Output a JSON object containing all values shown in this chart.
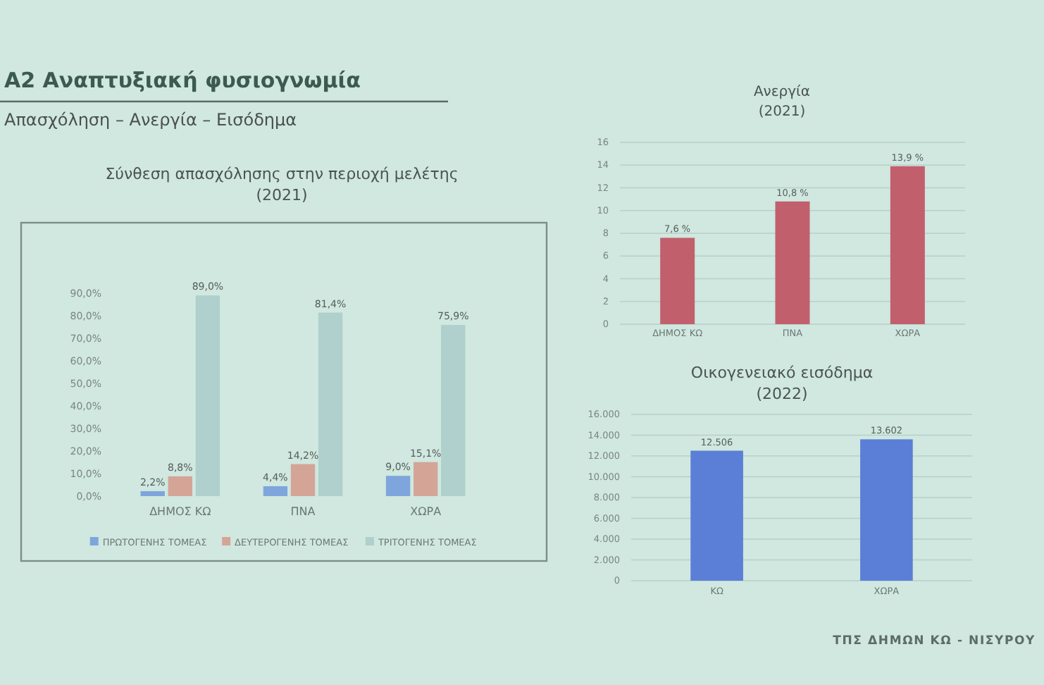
{
  "chart_data": [
    {
      "type": "other",
      "title": "Α2 Αναπτυξιακή φυσιογνωμία",
      "subtitle": "Απασχόληση – Ανεργία – Εισόδημα",
      "annotations": [
        "ΤΠΣ ΔΗΜΩΝ ΚΩ - ΝΙΣΥΡΟΥ"
      ]
    },
    {
      "type": "bar",
      "title": "Σύνθεση απασχόλησης στην περιοχή μελέτης",
      "subtitle": "(2021)",
      "categories": [
        "ΔΗΜΟΣ ΚΩ",
        "ΠΝΑ",
        "ΧΩΡΑ"
      ],
      "series": [
        {
          "name": "ΠΡΩΤΟΓΕΝΗΣ ΤΟΜΕΑΣ",
          "color": "#7ea6dc",
          "values": [
            2.2,
            4.4,
            9.0
          ],
          "value_labels": [
            "2,2%",
            "4,4%",
            "9,0%"
          ]
        },
        {
          "name": "ΔΕΥΤΕΡΟΓΕΝΗΣ ΤΟΜΕΑΣ",
          "color": "#d4a597",
          "values": [
            8.8,
            14.2,
            15.1
          ],
          "value_labels": [
            "8,8%",
            "14,2%",
            "15,1%"
          ]
        },
        {
          "name": "ΤΡΙΤΟΓΕΝΗΣ ΤΟΜΕΑΣ",
          "color": "#afd0cc",
          "values": [
            89.0,
            81.4,
            75.9
          ],
          "value_labels": [
            "89,0%",
            "81,4%",
            "75,9%"
          ]
        }
      ],
      "ylim": [
        0,
        90
      ],
      "yticks": [
        {
          "value": 0,
          "label": "0,0%"
        },
        {
          "value": 10,
          "label": "10,0%"
        },
        {
          "value": 20,
          "label": "20,0%"
        },
        {
          "value": 30,
          "label": "30,0%"
        },
        {
          "value": 40,
          "label": "40,0%"
        },
        {
          "value": 50,
          "label": "50,0%"
        },
        {
          "value": 60,
          "label": "60,0%"
        },
        {
          "value": 70,
          "label": "70,0%"
        },
        {
          "value": 80,
          "label": "80,0%"
        },
        {
          "value": 90,
          "label": "90,0%"
        }
      ],
      "legend": "bottom"
    },
    {
      "type": "bar",
      "title": "Ανεργία",
      "subtitle": "(2021)",
      "categories": [
        "ΔΗΜΟΣ ΚΩ",
        "ΠΝΑ",
        "ΧΩΡΑ"
      ],
      "values": [
        7.6,
        10.8,
        13.9
      ],
      "value_labels": [
        "7,6 %",
        "10,8 %",
        "13,9 %"
      ],
      "color": "#c25f6d",
      "ylim": [
        0,
        16
      ],
      "yticks": [
        0,
        2,
        4,
        6,
        8,
        10,
        12,
        14,
        16
      ],
      "grid": "y"
    },
    {
      "type": "bar",
      "title": "Οικογενειακό εισόδημα",
      "subtitle": "(2022)",
      "categories": [
        "ΚΩ",
        "ΧΩΡΑ"
      ],
      "values": [
        12506,
        13602
      ],
      "value_labels": [
        "12.506",
        "13.602"
      ],
      "color": "#5b7fd6",
      "ylim": [
        0,
        16000
      ],
      "yticks": [
        {
          "value": 0,
          "label": "0"
        },
        {
          "value": 2000,
          "label": "2.000"
        },
        {
          "value": 4000,
          "label": "4.000"
        },
        {
          "value": 6000,
          "label": "6.000"
        },
        {
          "value": 8000,
          "label": "8.000"
        },
        {
          "value": 10000,
          "label": "10.000"
        },
        {
          "value": 12000,
          "label": "12.000"
        },
        {
          "value": 14000,
          "label": "14.000"
        },
        {
          "value": 16000,
          "label": "16.000"
        }
      ],
      "grid": "y"
    }
  ]
}
